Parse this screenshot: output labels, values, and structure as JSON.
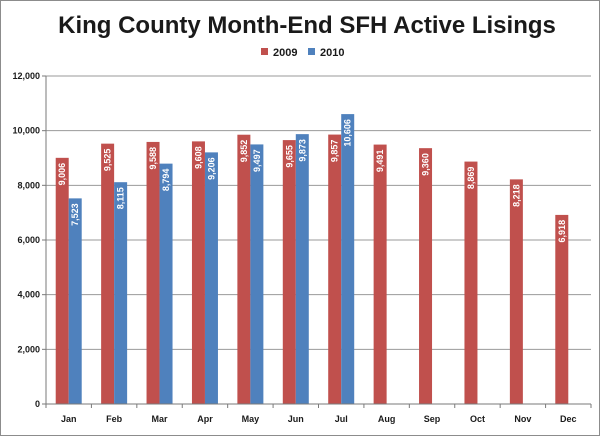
{
  "chart_data": {
    "type": "bar",
    "title": "King County Month-End SFH Active Lisings",
    "xlabel": "",
    "ylabel": "",
    "categories": [
      "Jan",
      "Feb",
      "Mar",
      "Apr",
      "May",
      "Jun",
      "Jul",
      "Aug",
      "Sep",
      "Oct",
      "Nov",
      "Dec"
    ],
    "series": [
      {
        "name": "2009",
        "color": "#c0504d",
        "values": [
          9006,
          9525,
          9588,
          9608,
          9852,
          9655,
          9857,
          9491,
          9360,
          8869,
          8218,
          6918
        ],
        "labels": [
          "9,006",
          "9,525",
          "9,588",
          "9,608",
          "9,852",
          "9,655",
          "9,857",
          "9,491",
          "9,360",
          "8,869",
          "8,218",
          "6,918"
        ]
      },
      {
        "name": "2010",
        "color": "#4f81bd",
        "values": [
          7523,
          8115,
          8794,
          9206,
          9497,
          9873,
          10606,
          null,
          null,
          null,
          null,
          null
        ],
        "labels": [
          "7,523",
          "8,115",
          "8,794",
          "9,206",
          "9,497",
          "9,873",
          "10,606",
          null,
          null,
          null,
          null,
          null
        ]
      }
    ],
    "ylim": [
      0,
      12000
    ],
    "yticks": [
      0,
      2000,
      4000,
      6000,
      8000,
      10000,
      12000
    ],
    "ytick_labels": [
      "0",
      "2,000",
      "4,000",
      "6,000",
      "8,000",
      "10,000",
      "12,000"
    ],
    "grid": true,
    "legend_position": "top-center"
  }
}
